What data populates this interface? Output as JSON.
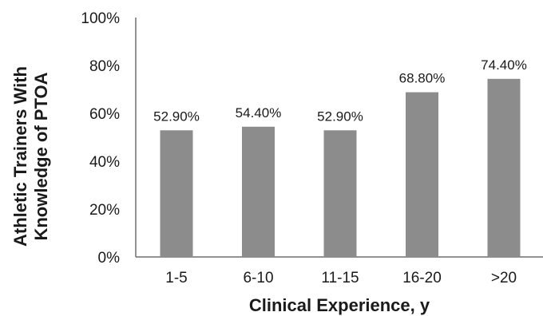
{
  "chart_data": {
    "type": "bar",
    "categories": [
      "1-5",
      "6-10",
      "11-15",
      "16-20",
      ">20"
    ],
    "values": [
      52.9,
      54.4,
      52.9,
      68.8,
      74.4
    ],
    "data_labels": [
      "52.90%",
      "54.40%",
      "52.90%",
      "68.80%",
      "74.40%"
    ],
    "y_ticks": [
      "0%",
      "20%",
      "40%",
      "60%",
      "80%",
      "100%"
    ],
    "ylim": [
      0,
      100
    ],
    "xlabel": "Clinical Experience, y",
    "ylabel_lines": [
      "Athletic Trainers With",
      "Knowledge of PTOA"
    ],
    "bar_color": "#8c8c8d",
    "grid": false,
    "legend": "none"
  }
}
